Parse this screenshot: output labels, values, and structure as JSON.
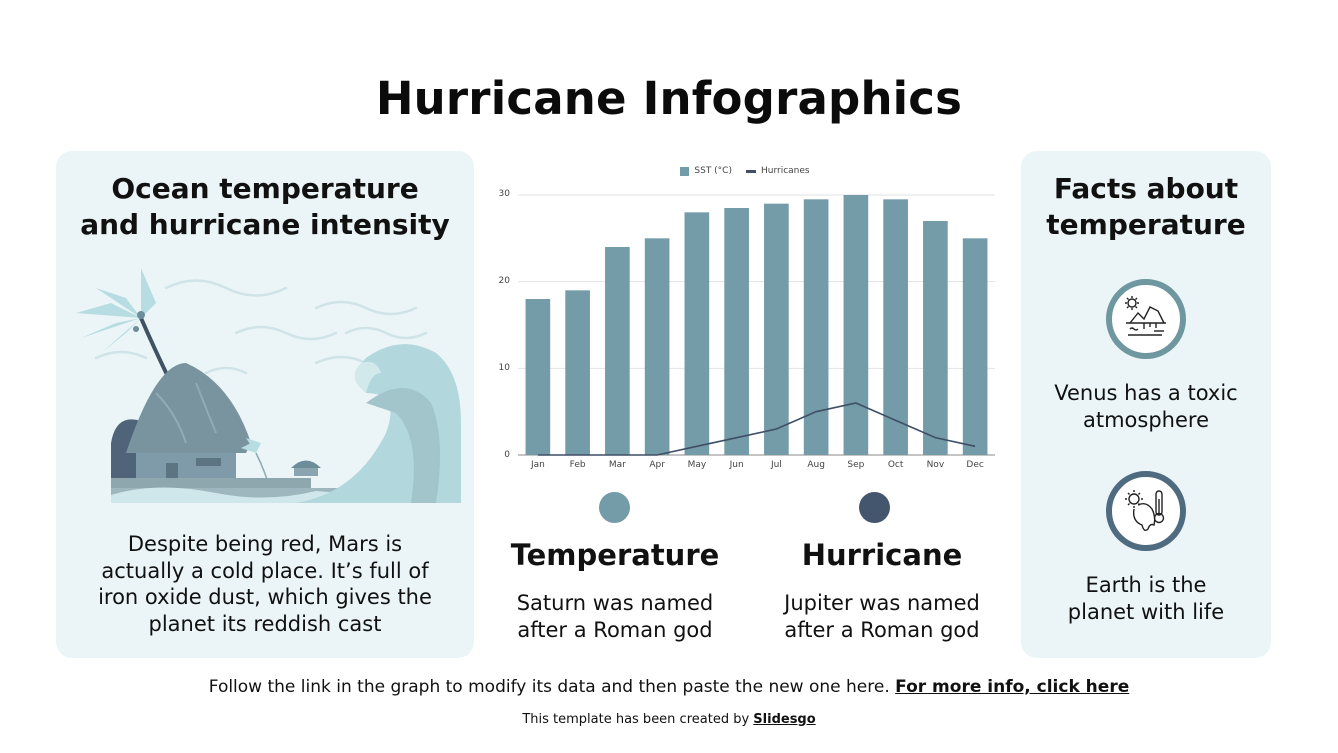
{
  "title": "Hurricane Infographics",
  "left_card": {
    "heading_line1": "Ocean temperature",
    "heading_line2": "and hurricane intensity",
    "illustration": "hurricane-hut-wave-illustration",
    "body_lines": [
      "Despite being red, Mars is",
      "actually a cold place. It’s full of",
      "iron oxide dust, which gives the",
      "planet its reddish cast"
    ]
  },
  "right_card": {
    "heading_line1": "Facts about",
    "heading_line2": "temperature",
    "facts": [
      {
        "icon": "melting-iceberg-sun-icon",
        "line1": "Venus has a toxic",
        "line2": "atmosphere",
        "ring_color": "#6f979f"
      },
      {
        "icon": "melting-earth-thermometer-icon",
        "line1": "Earth is the",
        "line2": "planet with life",
        "ring_color": "#4f6b80"
      }
    ]
  },
  "columns": [
    {
      "title": "Temperature",
      "line1": "Saturn was named",
      "line2": "after a Roman god",
      "dot_color": "#739ba8"
    },
    {
      "title": "Hurricane",
      "line1": "Jupiter was named",
      "line2": "after a Roman god",
      "dot_color": "#44566e"
    }
  ],
  "footer": {
    "text": "Follow the link in the graph to modify its data and then paste the new one here. ",
    "link": "For more info, click here",
    "credit_text": "This template has been created by ",
    "credit_link": "Slidesgo"
  },
  "colors": {
    "bar": "#739ba8",
    "line": "#3e4f66",
    "card_bg": "#ebf5f7"
  },
  "chart_data": {
    "type": "bar",
    "title": "",
    "categories": [
      "Jan",
      "Feb",
      "Mar",
      "Apr",
      "May",
      "Jun",
      "Jul",
      "Aug",
      "Sep",
      "Oct",
      "Nov",
      "Dec"
    ],
    "series": [
      {
        "name": "SST (°C)",
        "type": "bar",
        "values": [
          18,
          19,
          24,
          25,
          28,
          28.5,
          29,
          29.5,
          30,
          29.5,
          27,
          25
        ]
      },
      {
        "name": "Hurricanes",
        "type": "line",
        "values": [
          0,
          0,
          0,
          0,
          1,
          2,
          3,
          5,
          6,
          4,
          2,
          1
        ]
      }
    ],
    "xlabel": "",
    "ylabel": "",
    "ylim": [
      0,
      30
    ],
    "yticks": [
      "0",
      "10",
      "20",
      "30"
    ],
    "grid": true,
    "legend_position": "top"
  }
}
